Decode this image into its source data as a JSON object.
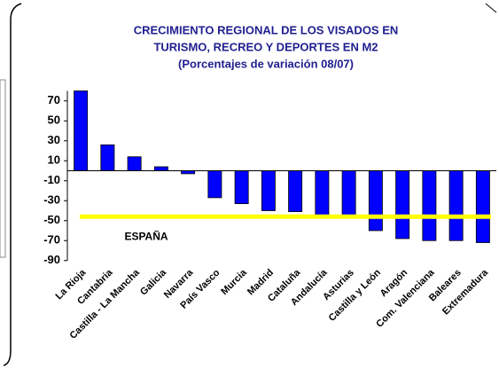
{
  "chart_data": {
    "type": "bar",
    "title": [
      "CRECIMIENTO REGIONAL DE LOS VISADOS EN",
      "TURISMO, RECREO Y DEPORTES EN M2",
      "(Porcentajes de variación 08/07)"
    ],
    "categories": [
      "La Rioja",
      "Cantabria",
      "Castilla - La Mancha",
      "Galicia",
      "Navarra",
      "País Vasco",
      "Murcia",
      "Madrid",
      "Cataluña",
      "Andalucía",
      "Asturias",
      "Castilla y León",
      "Aragón",
      "Com. Valenciana",
      "Baleares",
      "Extremadura"
    ],
    "values": [
      80,
      26,
      14,
      4,
      -3,
      -27,
      -33,
      -40,
      -41,
      -45,
      -47,
      -60,
      -68,
      -70,
      -70,
      -72
    ],
    "color": "#0000ff",
    "ylim": [
      -90,
      80
    ],
    "yticks": [
      70,
      50,
      30,
      10,
      -10,
      -30,
      -50,
      -70,
      -90
    ],
    "reference_line": {
      "label": "ESPAÑA",
      "value": -46,
      "color": "#ffff00"
    }
  }
}
